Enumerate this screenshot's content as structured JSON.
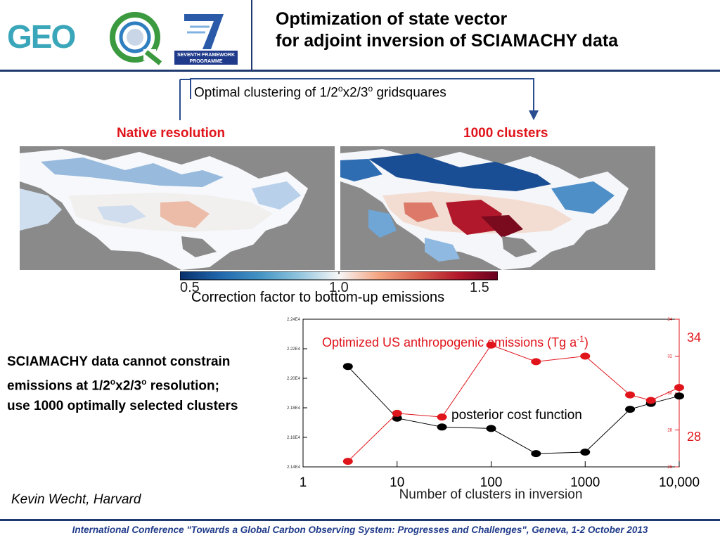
{
  "header": {
    "title_line1": "Optimization of state vector",
    "title_line2": "for adjoint inversion of SCIAMACHY data",
    "logos": {
      "geo_text": "GEO",
      "fp7_line1": "SEVENTH FRAMEWORK",
      "fp7_line2": "PROGRAMME"
    }
  },
  "clustering": {
    "caption_prefix": "Optimal clustering of 1/2",
    "caption_sup1": "o",
    "caption_mid": "x2/3",
    "caption_sup2": "o",
    "caption_suffix": " gridsquares"
  },
  "maps": {
    "left_label": "Native resolution",
    "right_label": "1000 clusters"
  },
  "colorbar": {
    "tick_min": "0.5",
    "tick_mid": "1.0",
    "tick_max": "1.5",
    "caption": "Correction factor to bottom-up emissions",
    "colors": [
      "#08306b",
      "#2166ac",
      "#4393c3",
      "#92c5de",
      "#f7f7f7",
      "#f4a582",
      "#d6604d",
      "#b2182b",
      "#67001f"
    ]
  },
  "statement": {
    "line1": "SCIAMACHY data cannot constrain",
    "line2a": "emissions at 1/2",
    "line2sup1": "o",
    "line2b": "x2/3",
    "line2sup2": "o",
    "line2c": " resolution;",
    "line3": "use 1000 optimally selected clusters"
  },
  "author": "Kevin Wecht, Harvard",
  "footer": "International Conference \"Towards a Global Carbon Observing System: Progresses and Challenges\", Geneva, 1-2 October 2013",
  "chart_data": {
    "type": "line",
    "x_scale": "log",
    "xlabel": "Number of clusters in inversion",
    "x_tick_labels": [
      "1",
      "10",
      "100",
      "1000",
      "10,000"
    ],
    "x_ticks": [
      1,
      10,
      100,
      1000,
      10000
    ],
    "xlim": [
      1,
      10000
    ],
    "y_left_ticks": [
      "2.14E4",
      "2.16E4",
      "2.18E4",
      "2.20E4",
      "2.22E4",
      "2.24E4"
    ],
    "y_left_lim": [
      21400,
      22400
    ],
    "y_right_ticks": [
      "26",
      "28",
      "30",
      "32",
      "34"
    ],
    "y_right_lim": [
      26,
      34
    ],
    "right_axis_labels": {
      "top": "34",
      "bottom": "28"
    },
    "series": [
      {
        "name": "posterior cost function",
        "color": "#000000",
        "axis": "left",
        "x": [
          3,
          10,
          30,
          100,
          300,
          1000,
          3000,
          5000,
          10000
        ],
        "y": [
          22080,
          21730,
          21670,
          21660,
          21490,
          21500,
          21790,
          21830,
          21880
        ]
      },
      {
        "name": "Optimized US anthropogenic emissions (Tg a",
        "name_sup": "-1",
        "name_close": ")",
        "color": "#e0141b",
        "axis": "right",
        "x": [
          3,
          10,
          30,
          100,
          300,
          1000,
          3000,
          5000,
          10000
        ],
        "y": [
          26.3,
          28.9,
          28.7,
          32.6,
          31.7,
          32.0,
          29.9,
          29.6,
          30.3
        ]
      }
    ]
  }
}
